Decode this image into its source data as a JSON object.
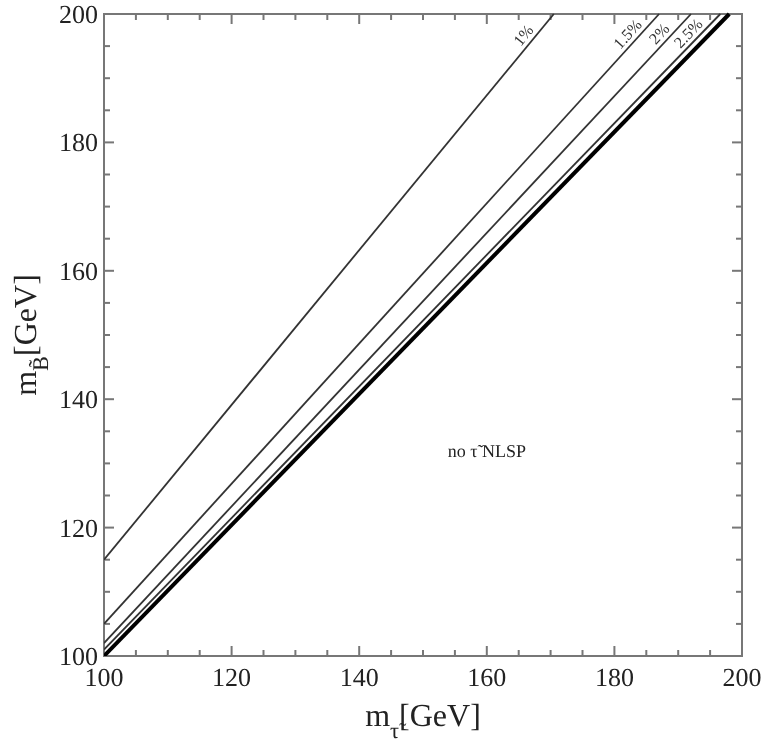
{
  "chart_data": {
    "type": "line",
    "xlabel": "m$_{τ̃}$[GeV]",
    "ylabel": "m$_{B̃}$[GeV]",
    "xlim": [
      100,
      200
    ],
    "ylim": [
      100,
      200
    ],
    "xticks": [
      100,
      {
        "value": 105,
        "label": null
      },
      {
        "value": 110,
        "label": null
      },
      {
        "value": 115,
        "label": null
      },
      120,
      {
        "value": 125,
        "label": null
      },
      {
        "value": 130,
        "label": null
      },
      {
        "value": 135,
        "label": null
      },
      140,
      {
        "value": 145,
        "label": null
      },
      {
        "value": 150,
        "label": null
      },
      {
        "value": 155,
        "label": null
      },
      160,
      {
        "value": 165,
        "label": null
      },
      {
        "value": 170,
        "label": null
      },
      {
        "value": 175,
        "label": null
      },
      180,
      {
        "value": 185,
        "label": null
      },
      {
        "value": 190,
        "label": null
      },
      {
        "value": 195,
        "label": null
      },
      200
    ],
    "yticks": [
      100,
      {
        "value": 105,
        "label": null
      },
      {
        "value": 110,
        "label": null
      },
      {
        "value": 115,
        "label": null
      },
      120,
      {
        "value": 125,
        "label": null
      },
      {
        "value": 130,
        "label": null
      },
      {
        "value": 135,
        "label": null
      },
      140,
      {
        "value": 145,
        "label": null
      },
      {
        "value": 150,
        "label": null
      },
      {
        "value": 155,
        "label": null
      },
      160,
      {
        "value": 165,
        "label": null
      },
      {
        "value": 170,
        "label": null
      },
      {
        "value": 175,
        "label": null
      },
      180,
      {
        "value": 185,
        "label": null
      },
      {
        "value": 190,
        "label": null
      },
      {
        "value": 195,
        "label": null
      },
      200
    ],
    "grid": false,
    "legend": false,
    "marker": "none",
    "line_style": "solid",
    "annotations": [
      "no τ̃ NLSP"
    ],
    "series": [
      {
        "name": "1%",
        "color": "#333333",
        "x": [
          100,
          170.5
        ],
        "values": [
          115,
          200
        ]
      },
      {
        "name": "1.5%",
        "color": "#333333",
        "x": [
          100,
          187
        ],
        "values": [
          105,
          200
        ]
      },
      {
        "name": "2%",
        "color": "#333333",
        "x": [
          100,
          192
        ],
        "values": [
          102,
          200
        ]
      },
      {
        "name": "2.5%",
        "color": "#333333",
        "x": [
          100,
          196.6
        ],
        "values": [
          101,
          200
        ]
      },
      {
        "color": "#000000",
        "x": [
          100,
          198
        ],
        "values": [
          100,
          200
        ]
      }
    ]
  }
}
